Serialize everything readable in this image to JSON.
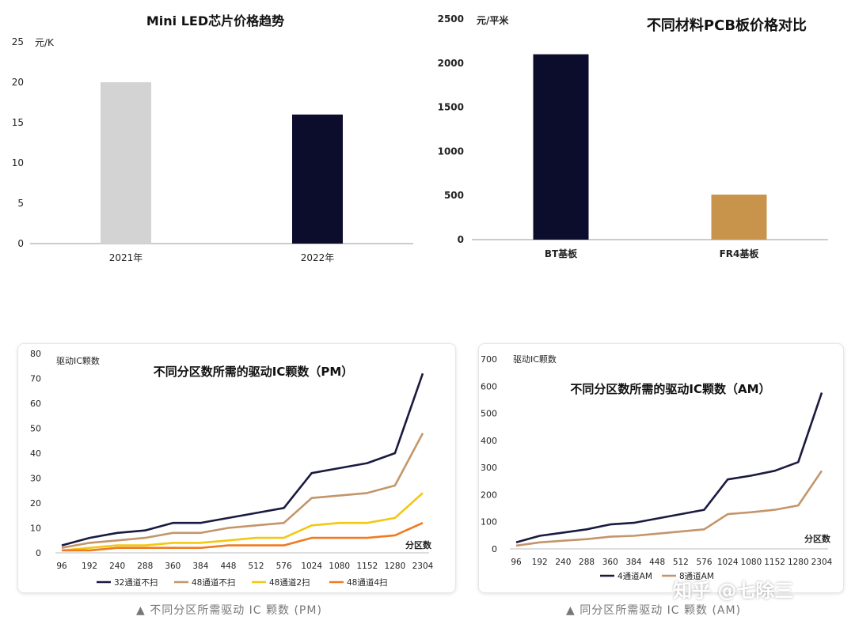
{
  "chart_data": [
    {
      "type": "bar",
      "title": "Mini LED芯片价格趋势",
      "ylabel": "元/K",
      "categories": [
        "2021年",
        "2022年"
      ],
      "values": [
        20,
        16
      ],
      "colors": [
        "#d3d3d3",
        "#0c0c2c"
      ],
      "ylim": [
        0,
        25
      ],
      "yticks": [
        0,
        5,
        10,
        15,
        20,
        25
      ],
      "grid": false
    },
    {
      "type": "bar",
      "title": "不同材料PCB板价格对比",
      "ylabel": "元/平米",
      "categories": [
        "BT基板",
        "FR4基板"
      ],
      "values": [
        2100,
        510
      ],
      "colors": [
        "#0c0c2c",
        "#c8934a"
      ],
      "ylim": [
        0,
        2500
      ],
      "yticks": [
        0,
        500,
        1000,
        1500,
        2000,
        2500
      ],
      "grid": false
    },
    {
      "type": "line",
      "title": "不同分区数所需的驱动IC颗数（PM）",
      "ylabel": "驱动IC颗数",
      "xlabel": "分区数",
      "categories": [
        "96",
        "192",
        "240",
        "288",
        "360",
        "384",
        "448",
        "512",
        "576",
        "1024",
        "1080",
        "1152",
        "1280",
        "2304"
      ],
      "ylim": [
        0,
        80
      ],
      "yticks": [
        0,
        10,
        20,
        30,
        40,
        50,
        60,
        70,
        80
      ],
      "legend_position": "bottom",
      "series": [
        {
          "name": "32通道不扫",
          "color": "#1a1a40",
          "values": [
            3,
            6,
            8,
            9,
            12,
            12,
            14,
            16,
            18,
            32,
            34,
            36,
            40,
            72
          ]
        },
        {
          "name": "48通道不扫",
          "color": "#c4956a",
          "values": [
            2,
            4,
            5,
            6,
            8,
            8,
            10,
            11,
            12,
            22,
            23,
            24,
            27,
            48
          ]
        },
        {
          "name": "48通道2扫",
          "color": "#f2c811",
          "values": [
            1,
            2,
            3,
            3,
            4,
            4,
            5,
            6,
            6,
            11,
            12,
            12,
            14,
            24
          ]
        },
        {
          "name": "48通道4扫",
          "color": "#f07a22",
          "values": [
            1,
            1,
            2,
            2,
            2,
            2,
            3,
            3,
            3,
            6,
            6,
            6,
            7,
            12
          ]
        }
      ]
    },
    {
      "type": "line",
      "title": "不同分区数所需的驱动IC颗数（AM）",
      "ylabel": "驱动IC颗数",
      "xlabel": "分区数",
      "categories": [
        "96",
        "192",
        "240",
        "288",
        "360",
        "384",
        "448",
        "512",
        "576",
        "1024",
        "1080",
        "1152",
        "1280",
        "2304"
      ],
      "ylim": [
        0,
        700
      ],
      "yticks": [
        0,
        100,
        200,
        300,
        400,
        500,
        600,
        700
      ],
      "legend_position": "bottom",
      "series": [
        {
          "name": "4通道AM",
          "color": "#1a1a40",
          "values": [
            24,
            48,
            60,
            72,
            90,
            96,
            112,
            128,
            144,
            256,
            270,
            288,
            320,
            576
          ]
        },
        {
          "name": "8通道AM",
          "color": "#c4956a",
          "values": [
            12,
            24,
            30,
            36,
            45,
            48,
            56,
            64,
            72,
            128,
            135,
            144,
            160,
            288
          ]
        }
      ]
    }
  ],
  "captions": {
    "left": "▲   不同分区所需驱动 IC 颗数 (PM)",
    "right": "▲   同分区所需驱动 IC 颗数 (AM)"
  },
  "watermark": "知乎 @七除三"
}
